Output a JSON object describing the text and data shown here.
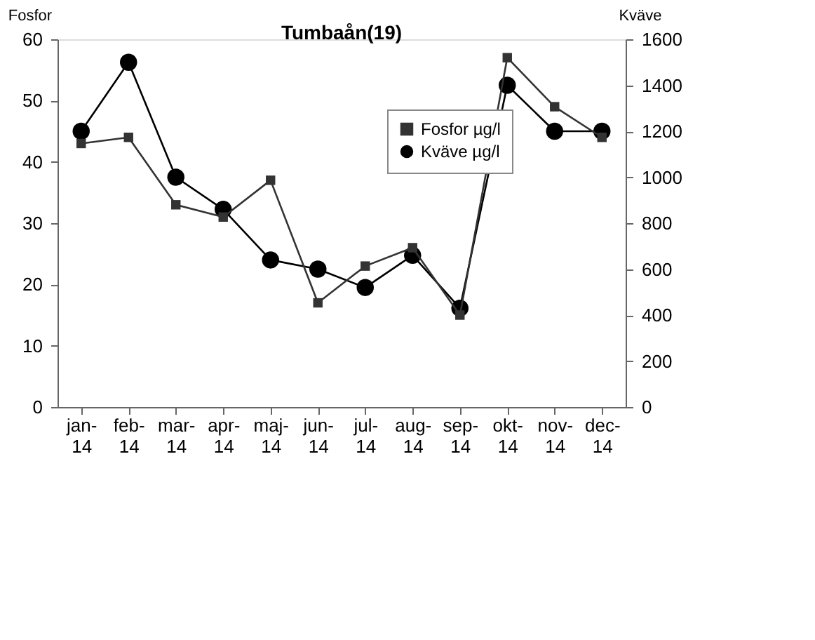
{
  "chart_data": {
    "type": "line",
    "title": "Tumbaån(19)",
    "ylabel": "Fosfor",
    "y2label": "Kväve",
    "categories": [
      "jan-14",
      "feb-14",
      "mar-14",
      "apr-14",
      "maj-14",
      "jun-14",
      "jul-14",
      "aug-14",
      "sep-14",
      "okt-14",
      "nov-14",
      "dec-14"
    ],
    "series": [
      {
        "name": "Fosfor µg/l",
        "color": "#333333",
        "marker": "square",
        "values": [
          43,
          44,
          33,
          31,
          37,
          17,
          23,
          26,
          15,
          57,
          49,
          44
        ]
      },
      {
        "name": "Kväve µg/l",
        "color": "#000000",
        "marker": "circle",
        "axis": "y2",
        "values": [
          1200,
          1500,
          1000,
          860,
          640,
          600,
          520,
          660,
          430,
          1400,
          1200,
          1200
        ]
      }
    ],
    "ylim": [
      0,
      60
    ],
    "yticks": [
      0,
      10,
      20,
      30,
      40,
      50,
      60
    ],
    "y2lim": [
      0,
      1600
    ],
    "y2ticks": [
      0,
      200,
      400,
      600,
      800,
      1000,
      1200,
      1400,
      1600
    ],
    "grid": false,
    "legend": "top right"
  }
}
